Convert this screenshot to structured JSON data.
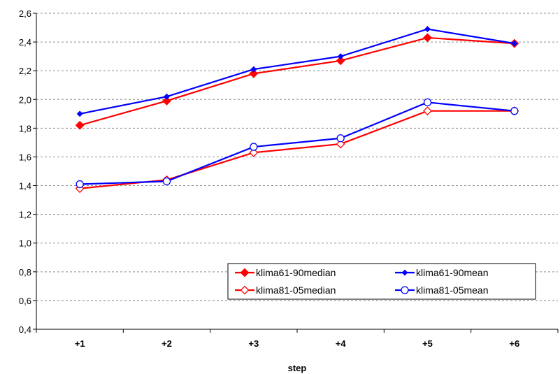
{
  "chart_data": {
    "type": "line",
    "xlabel": "step",
    "ylabel": "",
    "categories": [
      "+1",
      "+2",
      "+3",
      "+4",
      "+5",
      "+6"
    ],
    "ylim": [
      0.4,
      2.6
    ],
    "yticks": [
      0.4,
      0.6,
      0.8,
      1.0,
      1.2,
      1.4,
      1.6,
      1.8,
      2.0,
      2.2,
      2.4,
      2.6
    ],
    "ytick_labels": [
      "0,4",
      "0,6",
      "0,8",
      "1,0",
      "1,2",
      "1,4",
      "1,6",
      "1,8",
      "2,0",
      "2,2",
      "2,4",
      "2,6"
    ],
    "grid": "horizontal dashed",
    "legend_position": "bottom-right inside plot",
    "series": [
      {
        "name": "klima61-90median",
        "color": "#ff0000",
        "marker": "diamond-filled",
        "values": [
          1.82,
          1.99,
          2.18,
          2.27,
          2.43,
          2.39
        ]
      },
      {
        "name": "klima61-90mean",
        "color": "#0000ff",
        "marker": "diamond-filled",
        "values": [
          1.9,
          2.02,
          2.21,
          2.3,
          2.49,
          2.39
        ]
      },
      {
        "name": "klima81-05median",
        "color": "#ff0000",
        "marker": "diamond-open",
        "values": [
          1.38,
          1.44,
          1.63,
          1.69,
          1.92,
          1.92
        ]
      },
      {
        "name": "klima81-05mean",
        "color": "#0000ff",
        "marker": "circle-open",
        "values": [
          1.41,
          1.43,
          1.67,
          1.73,
          1.98,
          1.92
        ]
      }
    ]
  }
}
